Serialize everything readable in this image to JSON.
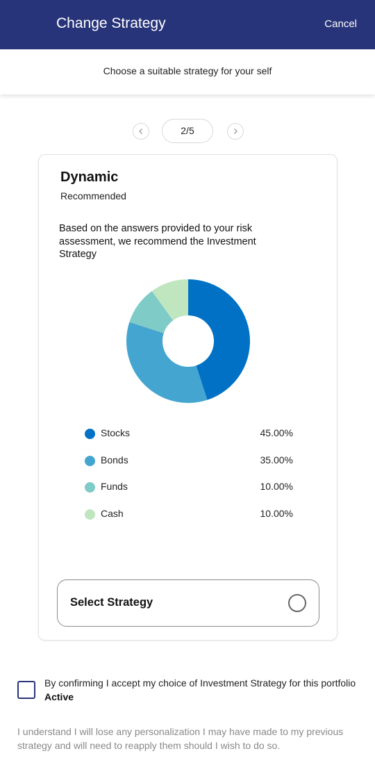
{
  "header": {
    "title": "Change Strategy",
    "cancel_label": "Cancel",
    "background": "#283479"
  },
  "subheader": {
    "text": "Choose a suitable strategy for your self"
  },
  "pager": {
    "current": "2/5",
    "prev_icon": "chevron-left-icon",
    "next_icon": "chevron-right-icon"
  },
  "strategy": {
    "name": "Dynamic",
    "tag": "Recommended",
    "description": "Based on the answers provided to your risk assessment, we recommend the Investment Strategy",
    "select_label": "Select Strategy",
    "selected": false
  },
  "chart_data": {
    "type": "pie",
    "variant": "donut",
    "categories": [
      "Stocks",
      "Bonds",
      "Funds",
      "Cash"
    ],
    "values": [
      45,
      35,
      10,
      10
    ],
    "labels": [
      "45.00%",
      "35.00%",
      "10.00%",
      "10.00%"
    ],
    "colors": [
      "#0071c5",
      "#44a5d0",
      "#7ecbc7",
      "#bfe6bf"
    ],
    "legend": "below"
  },
  "confirm": {
    "text": "By confirming I accept my choice of Investment Strategy for this portfolio",
    "emphasis": "Active",
    "checked": false
  },
  "disclaimer": "I understand I will lose any personalization I may have made to my previous strategy and will need to reapply them should I wish to do so."
}
